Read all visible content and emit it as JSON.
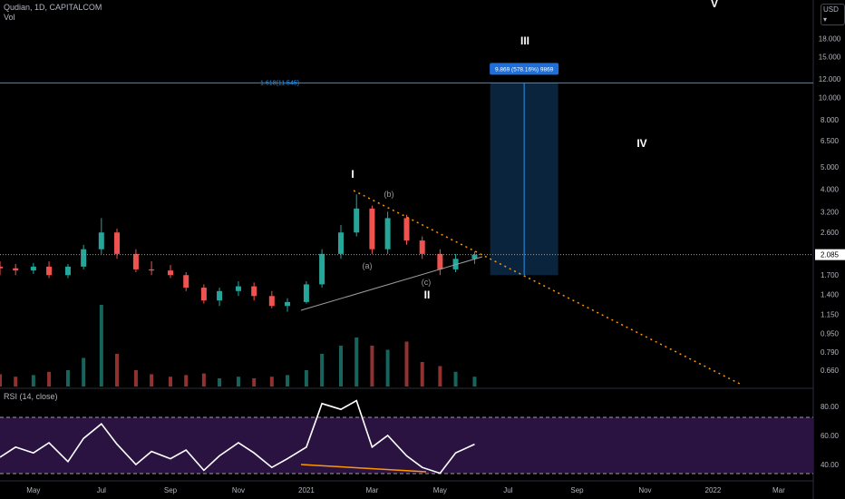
{
  "header": {
    "symbol_line": "Qudian, 1D, CAPITALCOM",
    "volume_label": "Vol",
    "currency_button": "USD ▾",
    "rsi_label": "RSI (14, close)"
  },
  "colors": {
    "background": "#000000",
    "up": "#26a69a",
    "down": "#ef5350",
    "rsi_line": "#ffffff",
    "rsi_band": "#2a1340",
    "fib_line": "#2196f3",
    "projection_box": "#0d2a48",
    "trend_dotted": "#ff9800",
    "label_white": "#ffffff",
    "label_grey": "#9e9e9e",
    "price_tag": "#ffffff"
  },
  "chart_data": [
    {
      "type": "candlestick",
      "title": "Qudian, 1D, CAPITALCOM",
      "y_scale": "log",
      "ylim": [
        0.56,
        25
      ],
      "y_ticks": [
        "18.000",
        "15.000",
        "12.000",
        "10.000",
        "8.000",
        "6.500",
        "5.000",
        "4.000",
        "3.200",
        "2.600",
        "2.085",
        "1.700",
        "1.400",
        "1.150",
        "0.950",
        "0.790",
        "0.660"
      ],
      "x_ticks": [
        "May",
        "Jul",
        "Sep",
        "Nov",
        "2021",
        "Mar",
        "May",
        "Jul",
        "Sep",
        "Nov",
        "2022",
        "Mar"
      ],
      "x_range": [
        "2020-04-01",
        "2022-04-01"
      ],
      "last_price": "2.085",
      "ohlc": [
        {
          "date": "2020-04-01",
          "open": 1.85,
          "high": 1.95,
          "low": 1.7,
          "close": 1.82
        },
        {
          "date": "2020-04-15",
          "open": 1.82,
          "high": 1.9,
          "low": 1.7,
          "close": 1.78
        },
        {
          "date": "2020-05-01",
          "open": 1.78,
          "high": 1.92,
          "low": 1.72,
          "close": 1.85
        },
        {
          "date": "2020-05-15",
          "open": 1.85,
          "high": 1.95,
          "low": 1.65,
          "close": 1.7
        },
        {
          "date": "2020-06-01",
          "open": 1.7,
          "high": 1.9,
          "low": 1.65,
          "close": 1.85
        },
        {
          "date": "2020-06-15",
          "open": 1.85,
          "high": 2.3,
          "low": 1.8,
          "close": 2.2
        },
        {
          "date": "2020-07-01",
          "open": 2.2,
          "high": 3.0,
          "low": 2.1,
          "close": 2.6
        },
        {
          "date": "2020-07-15",
          "open": 2.6,
          "high": 2.7,
          "low": 2.0,
          "close": 2.1
        },
        {
          "date": "2020-08-01",
          "open": 2.1,
          "high": 2.2,
          "low": 1.75,
          "close": 1.8
        },
        {
          "date": "2020-08-15",
          "open": 1.8,
          "high": 1.95,
          "low": 1.7,
          "close": 1.78
        },
        {
          "date": "2020-09-01",
          "open": 1.78,
          "high": 1.88,
          "low": 1.65,
          "close": 1.7
        },
        {
          "date": "2020-09-15",
          "open": 1.7,
          "high": 1.75,
          "low": 1.45,
          "close": 1.5
        },
        {
          "date": "2020-10-01",
          "open": 1.5,
          "high": 1.55,
          "low": 1.28,
          "close": 1.32
        },
        {
          "date": "2020-10-15",
          "open": 1.32,
          "high": 1.5,
          "low": 1.25,
          "close": 1.45
        },
        {
          "date": "2020-11-01",
          "open": 1.45,
          "high": 1.6,
          "low": 1.38,
          "close": 1.52
        },
        {
          "date": "2020-11-15",
          "open": 1.52,
          "high": 1.58,
          "low": 1.32,
          "close": 1.38
        },
        {
          "date": "2020-12-01",
          "open": 1.38,
          "high": 1.45,
          "low": 1.22,
          "close": 1.25
        },
        {
          "date": "2020-12-15",
          "open": 1.25,
          "high": 1.35,
          "low": 1.18,
          "close": 1.3
        },
        {
          "date": "2021-01-01",
          "open": 1.3,
          "high": 1.6,
          "low": 1.28,
          "close": 1.55
        },
        {
          "date": "2021-01-15",
          "open": 1.55,
          "high": 2.2,
          "low": 1.5,
          "close": 2.1
        },
        {
          "date": "2021-02-01",
          "open": 2.1,
          "high": 2.8,
          "low": 2.0,
          "close": 2.6
        },
        {
          "date": "2021-02-15",
          "open": 2.6,
          "high": 3.8,
          "low": 2.5,
          "close": 3.3
        },
        {
          "date": "2021-03-01",
          "open": 3.3,
          "high": 3.4,
          "low": 2.1,
          "close": 2.2
        },
        {
          "date": "2021-03-15",
          "open": 2.2,
          "high": 3.2,
          "low": 2.1,
          "close": 3.0
        },
        {
          "date": "2021-04-01",
          "open": 3.0,
          "high": 3.1,
          "low": 2.3,
          "close": 2.4
        },
        {
          "date": "2021-04-15",
          "open": 2.4,
          "high": 2.5,
          "low": 2.0,
          "close": 2.1
        },
        {
          "date": "2021-05-01",
          "open": 2.1,
          "high": 2.2,
          "low": 1.7,
          "close": 1.8
        },
        {
          "date": "2021-05-15",
          "open": 1.8,
          "high": 2.1,
          "low": 1.75,
          "close": 2.0
        },
        {
          "date": "2021-06-01",
          "open": 2.0,
          "high": 2.15,
          "low": 1.9,
          "close": 2.085
        }
      ]
    },
    {
      "type": "bar",
      "title": "Vol",
      "x_range": [
        "2020-04-01",
        "2022-04-01"
      ],
      "x": [
        "2020-04-01",
        "2020-04-15",
        "2020-05-01",
        "2020-05-15",
        "2020-06-01",
        "2020-06-15",
        "2020-07-01",
        "2020-07-15",
        "2020-08-01",
        "2020-08-15",
        "2020-09-01",
        "2020-09-15",
        "2020-10-01",
        "2020-10-15",
        "2020-11-01",
        "2020-11-15",
        "2020-12-01",
        "2020-12-15",
        "2021-01-01",
        "2021-01-15",
        "2021-02-01",
        "2021-02-15",
        "2021-03-01",
        "2021-03-15",
        "2021-04-01",
        "2021-04-15",
        "2021-05-01",
        "2021-05-15",
        "2021-06-01"
      ],
      "values": [
        0.15,
        0.12,
        0.14,
        0.18,
        0.2,
        0.35,
        1.0,
        0.4,
        0.2,
        0.15,
        0.12,
        0.14,
        0.16,
        0.1,
        0.12,
        0.1,
        0.12,
        0.14,
        0.2,
        0.4,
        0.5,
        0.6,
        0.5,
        0.45,
        0.55,
        0.3,
        0.25,
        0.18,
        0.12
      ]
    },
    {
      "type": "line",
      "title": "RSI (14, close)",
      "ylim": [
        30,
        90
      ],
      "y_ticks": [
        "80.00",
        "60.00",
        "40.00"
      ],
      "x_range": [
        "2020-04-01",
        "2022-04-01"
      ],
      "x": [
        "2020-04-01",
        "2020-04-15",
        "2020-05-01",
        "2020-05-15",
        "2020-06-01",
        "2020-06-15",
        "2020-07-01",
        "2020-07-15",
        "2020-08-01",
        "2020-08-15",
        "2020-09-01",
        "2020-09-15",
        "2020-10-01",
        "2020-10-15",
        "2020-11-01",
        "2020-11-15",
        "2020-12-01",
        "2020-12-15",
        "2021-01-01",
        "2021-01-15",
        "2021-02-01",
        "2021-02-15",
        "2021-03-01",
        "2021-03-15",
        "2021-04-01",
        "2021-04-15",
        "2021-05-01",
        "2021-05-15",
        "2021-06-01"
      ],
      "values": [
        45,
        52,
        48,
        55,
        42,
        58,
        68,
        54,
        40,
        49,
        44,
        50,
        36,
        46,
        55,
        48,
        38,
        44,
        52,
        82,
        78,
        84,
        52,
        60,
        46,
        38,
        34,
        48,
        54
      ]
    }
  ],
  "annotations": {
    "wave_I": "I",
    "wave_II": "II",
    "wave_III": "III",
    "wave_IV": "IV",
    "wave_V": "V",
    "sub_a": "(a)",
    "sub_b": "(b)",
    "sub_c": "(c)",
    "fib_label": "1.618(11.545)",
    "projection_label": "9.869 (578.16%) 9869",
    "fib_price": 11.545,
    "projection_top": 11.545,
    "projection_bottom": 1.7,
    "projection_start": "2021-06-15",
    "projection_end": "2021-08-15",
    "price_tag": "2.085"
  }
}
